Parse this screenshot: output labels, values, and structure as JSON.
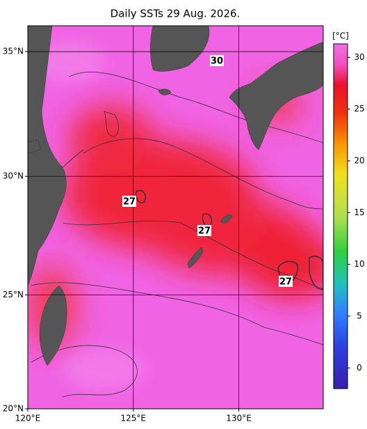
{
  "title": "Daily SSTs 29 Aug. 2026.",
  "map": {
    "lat_range": [
      20,
      36
    ],
    "lon_range": [
      120,
      134
    ],
    "lat_labels": [
      {
        "value": 35,
        "label": "35°N"
      },
      {
        "value": 30,
        "label": "30°N"
      },
      {
        "value": 25,
        "label": "25°N"
      },
      {
        "value": 20,
        "label": "20°N"
      }
    ],
    "lon_labels": [
      {
        "value": 120,
        "label": "120°E"
      },
      {
        "value": 125,
        "label": "125°E"
      },
      {
        "value": 130,
        "label": "130°E"
      }
    ],
    "contour_labels": [
      "30",
      "27",
      "27",
      "27"
    ]
  },
  "colorbar": {
    "label": "[°C]",
    "range": [
      -2,
      31.3
    ],
    "ticks": [
      30,
      25,
      20,
      15,
      10,
      5,
      0
    ]
  }
}
